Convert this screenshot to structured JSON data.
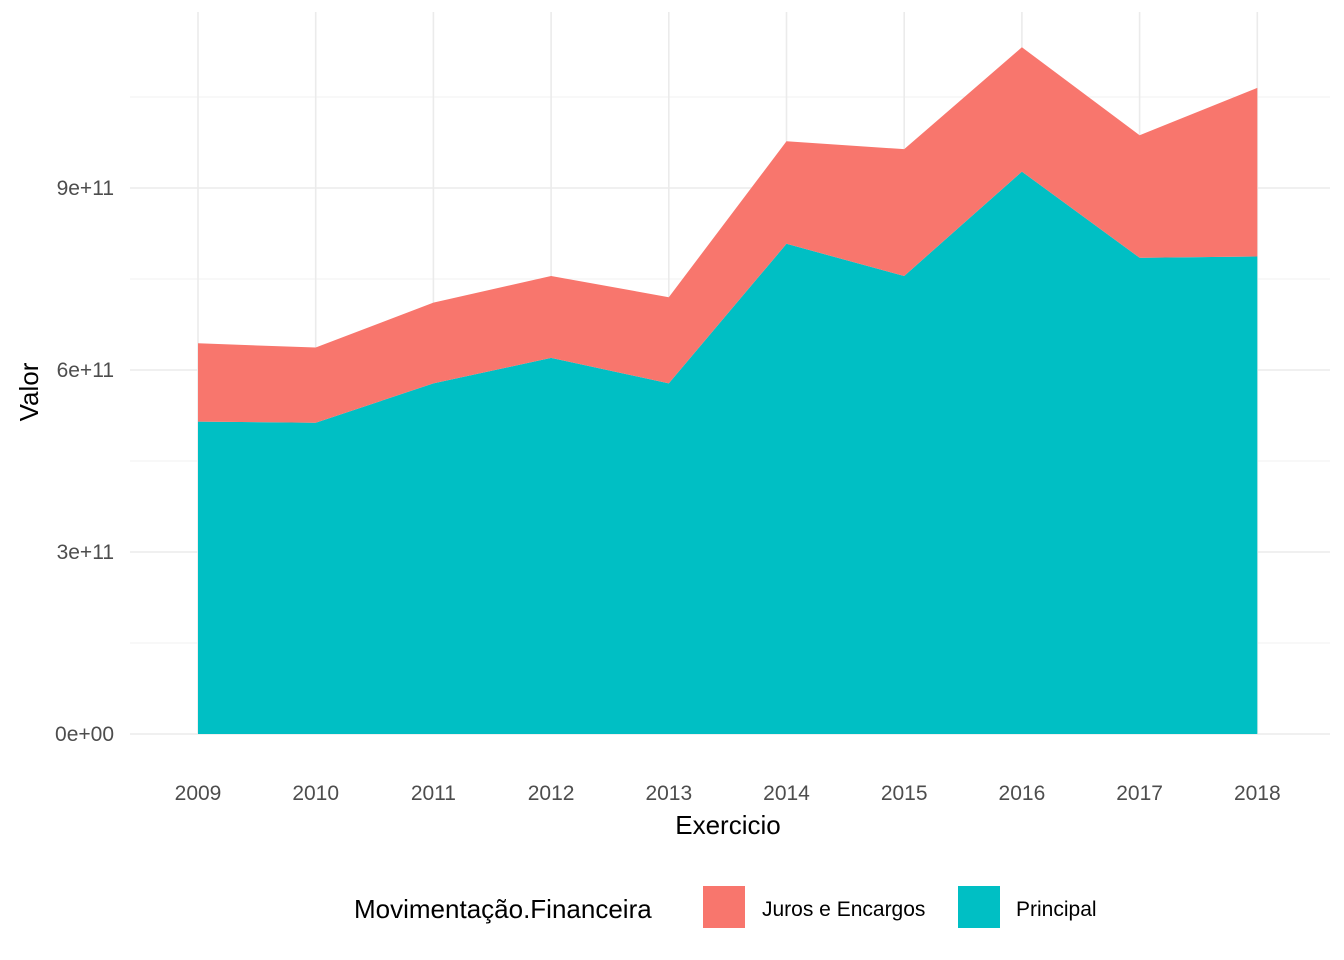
{
  "chart_data": {
    "type": "area",
    "stacked": true,
    "x": [
      2009,
      2010,
      2011,
      2012,
      2013,
      2014,
      2015,
      2016,
      2017,
      2018
    ],
    "series": [
      {
        "name": "Principal",
        "color": "#00BFC4",
        "values": [
          515000000000.0,
          513000000000.0,
          578000000000.0,
          620000000000.0,
          578000000000.0,
          808000000000.0,
          755000000000.0,
          927000000000.0,
          785000000000.0,
          787000000000.0
        ]
      },
      {
        "name": "Juros e Encargos",
        "color": "#F8766D",
        "values": [
          129000000000.0,
          124000000000.0,
          133000000000.0,
          135000000000.0,
          142000000000.0,
          169000000000.0,
          209000000000.0,
          205000000000.0,
          202000000000.0,
          278000000000.0
        ]
      }
    ],
    "xlabel": "Exercicio",
    "ylabel": "Valor",
    "x_tick_labels": [
      "2009",
      "2010",
      "2011",
      "2012",
      "2013",
      "2014",
      "2015",
      "2016",
      "2017",
      "2018"
    ],
    "y_ticks": [
      0,
      300000000000,
      600000000000,
      900000000000
    ],
    "y_tick_labels": [
      "0e+00",
      "3e+11",
      "6e+11",
      "9e+11"
    ],
    "ylim": [
      0,
      1200000000000.0
    ],
    "xlim": [
      2008.44,
      2019.0
    ],
    "grid": true,
    "legend": {
      "title": "Movimentação.Financeira",
      "placement": "bottom",
      "entries": [
        {
          "label": "Juros e Encargos",
          "color": "#F8766D"
        },
        {
          "label": "Principal",
          "color": "#00BFC4"
        }
      ]
    }
  }
}
